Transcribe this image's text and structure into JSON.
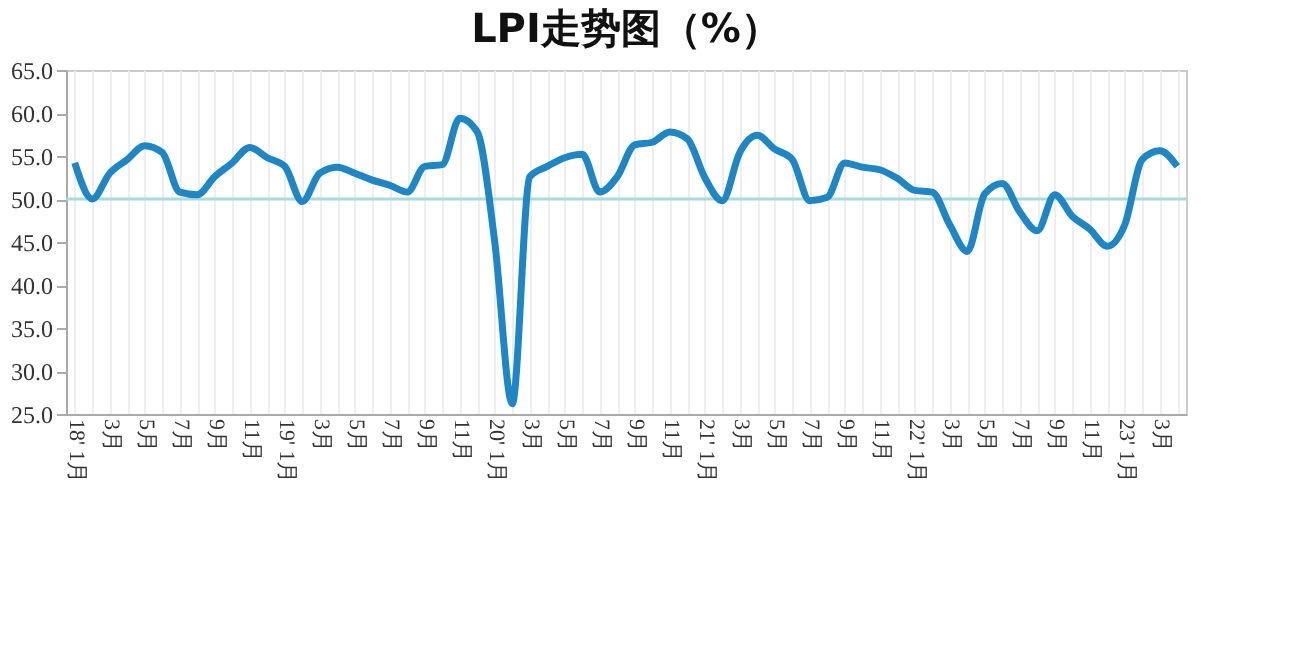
{
  "chart_data": {
    "type": "line",
    "title": "LPI走势图（%）",
    "categories": [
      "18' 1月",
      null,
      "3月",
      null,
      "5月",
      null,
      "7月",
      null,
      "9月",
      null,
      "11月",
      null,
      "19' 1月",
      null,
      "3月",
      null,
      "5月",
      null,
      "7月",
      null,
      "9月",
      null,
      "11月",
      null,
      "20' 1月",
      null,
      "3月",
      null,
      "5月",
      null,
      "7月",
      null,
      "9月",
      null,
      "11月",
      null,
      "21' 1月",
      null,
      "3月",
      null,
      "5月",
      null,
      "7月",
      null,
      "9月",
      null,
      "11月",
      null,
      "22' 1月",
      null,
      "3月",
      null,
      "5月",
      null,
      "7月",
      null,
      "9月",
      null,
      "11月",
      null,
      "23' 1月",
      null,
      "3月",
      null
    ],
    "series": [
      {
        "color": "#1f86c6",
        "values": [
          54.2,
          50.0,
          53.0,
          54.6,
          56.2,
          55.4,
          50.8,
          50.5,
          52.6,
          54.2,
          56.0,
          54.8,
          53.8,
          49.7,
          53.0,
          53.7,
          53.0,
          52.2,
          51.6,
          50.8,
          53.8,
          54.0,
          59.4,
          57.8,
          45.0,
          26.2,
          52.6,
          53.8,
          54.8,
          55.2,
          50.8,
          52.6,
          56.3,
          56.6,
          57.8,
          57.0,
          52.5,
          49.8,
          55.4,
          57.4,
          55.8,
          54.6,
          49.8,
          50.2,
          54.2,
          53.7,
          53.4,
          52.4,
          51.0,
          50.8,
          47.0,
          43.9,
          50.6,
          51.8,
          48.5,
          46.3,
          50.5,
          48.0,
          46.5,
          44.5,
          47.0,
          54.6,
          55.6,
          53.8
        ]
      }
    ],
    "ylim": [
      25,
      65
    ],
    "yticks": [
      {
        "value": 25,
        "label": "25.0"
      },
      {
        "value": 30,
        "label": "30.0"
      },
      {
        "value": 35,
        "label": "35.0"
      },
      {
        "value": 40,
        "label": "40.0"
      },
      {
        "value": 45,
        "label": "45.0"
      },
      {
        "value": 50,
        "label": "50.0"
      },
      {
        "value": 55,
        "label": "55.0"
      },
      {
        "value": 60,
        "label": "60.0"
      },
      {
        "value": 65,
        "label": "65.0"
      }
    ],
    "ref_lines": [
      {
        "axis": "y",
        "value": 50,
        "color": "#a8dcdc"
      }
    ],
    "grid": "x",
    "marker": "none",
    "line_style": "solid"
  }
}
